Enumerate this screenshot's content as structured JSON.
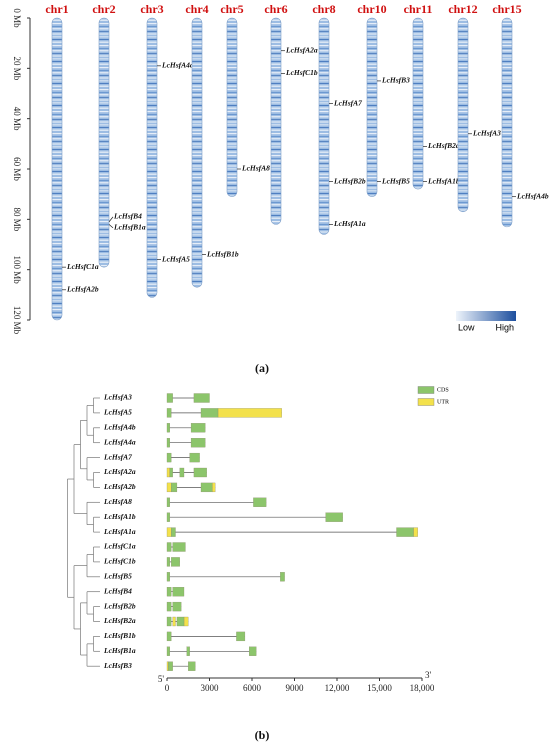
{
  "chart_data": [
    {
      "type": "chromosome-map",
      "panel_label": "(a)",
      "ylim": [
        0,
        120
      ],
      "yticks": [
        {
          "value": 0,
          "label": "0 Mb"
        },
        {
          "value": 20,
          "label": "20 Mb"
        },
        {
          "value": 40,
          "label": "40 Mb"
        },
        {
          "value": 60,
          "label": "60 Mb"
        },
        {
          "value": 80,
          "label": "80 Mb"
        },
        {
          "value": 100,
          "label": "100 Mb"
        },
        {
          "value": 120,
          "label": "120 Mb"
        }
      ],
      "legend_labels": [
        "Low",
        "High"
      ],
      "legend_colors": [
        "#eef4fb",
        "#1d4f9e"
      ],
      "chromosomes": [
        {
          "name": "chr1",
          "length": 120,
          "genes": [
            {
              "name": "LcHsfC1a",
              "position": 99
            },
            {
              "name": "LcHsfA2b",
              "position": 108
            }
          ]
        },
        {
          "name": "chr2",
          "length": 99,
          "genes": [
            {
              "name": "LcHsfB4",
              "position": 81
            },
            {
              "name": "LcHsfB1a",
              "position": 82
            }
          ]
        },
        {
          "name": "chr3",
          "length": 111,
          "genes": [
            {
              "name": "LcHsfA4a",
              "position": 19
            },
            {
              "name": "LcHsfA5",
              "position": 96
            }
          ]
        },
        {
          "name": "chr4",
          "length": 107,
          "genes": [
            {
              "name": "LcHsfB1b",
              "position": 94
            }
          ]
        },
        {
          "name": "chr5",
          "length": 71,
          "genes": [
            {
              "name": "LcHsfA8",
              "position": 60
            }
          ]
        },
        {
          "name": "chr6",
          "length": 82,
          "genes": [
            {
              "name": "LcHsfA2a",
              "position": 13
            },
            {
              "name": "LcHsfC1b",
              "position": 22
            }
          ]
        },
        {
          "name": "chr8",
          "length": 86,
          "genes": [
            {
              "name": "LcHsfA7",
              "position": 34
            },
            {
              "name": "LcHsfB2b",
              "position": 65
            },
            {
              "name": "LcHsfA1a",
              "position": 82
            }
          ]
        },
        {
          "name": "chr10",
          "length": 71,
          "genes": [
            {
              "name": "LcHsfB3",
              "position": 25
            },
            {
              "name": "LcHsfB5",
              "position": 65
            }
          ]
        },
        {
          "name": "chr11",
          "length": 68,
          "genes": [
            {
              "name": "LcHsfB2a",
              "position": 51
            },
            {
              "name": "LcHsfA1b",
              "position": 65
            }
          ]
        },
        {
          "name": "chr12",
          "length": 77,
          "genes": [
            {
              "name": "LcHsfA3",
              "position": 46
            }
          ]
        },
        {
          "name": "chr15",
          "length": 83,
          "genes": [
            {
              "name": "LcHsfA4b",
              "position": 71
            }
          ]
        }
      ]
    },
    {
      "type": "gene-structure",
      "panel_label": "(b)",
      "xlim": [
        0,
        18000
      ],
      "xticks": [
        0,
        3000,
        6000,
        9000,
        {
          "value": 12000,
          "label": "12,000"
        },
        {
          "value": 15000,
          "label": "15,000"
        },
        {
          "value": 18000,
          "label": "18,000"
        }
      ],
      "end_labels": [
        "5'",
        "3'"
      ],
      "features": [
        {
          "name": "CDS",
          "color": "#8cc56b"
        },
        {
          "name": "UTR",
          "color": "#f3e14b"
        }
      ],
      "genes": [
        {
          "name": "LcHsfA3",
          "span": [
            0,
            3000
          ],
          "cds": [
            [
              0,
              400
            ],
            [
              1900,
              3000
            ]
          ],
          "utr": []
        },
        {
          "name": "LcHsfA5",
          "span": [
            0,
            8100
          ],
          "cds": [
            [
              0,
              300
            ],
            [
              2400,
              3600
            ]
          ],
          "utr": [
            [
              3600,
              8100
            ]
          ]
        },
        {
          "name": "LcHsfA4b",
          "span": [
            0,
            2700
          ],
          "cds": [
            [
              0,
              200
            ],
            [
              1700,
              2700
            ]
          ],
          "utr": []
        },
        {
          "name": "LcHsfA4a",
          "span": [
            0,
            2700
          ],
          "cds": [
            [
              0,
              200
            ],
            [
              1700,
              2700
            ]
          ],
          "utr": []
        },
        {
          "name": "LcHsfA7",
          "span": [
            0,
            2300
          ],
          "cds": [
            [
              0,
              300
            ],
            [
              1600,
              2300
            ]
          ],
          "utr": []
        },
        {
          "name": "LcHsfA2a",
          "span": [
            0,
            2800
          ],
          "cds": [
            [
              200,
              400
            ],
            [
              900,
              1200
            ],
            [
              1900,
              2800
            ]
          ],
          "utr": [
            [
              0,
              200
            ]
          ]
        },
        {
          "name": "LcHsfA2b",
          "span": [
            0,
            3400
          ],
          "cds": [
            [
              300,
              700
            ],
            [
              2400,
              3200
            ]
          ],
          "utr": [
            [
              0,
              300
            ],
            [
              3200,
              3400
            ]
          ]
        },
        {
          "name": "LcHsfA8",
          "span": [
            0,
            7000
          ],
          "cds": [
            [
              0,
              200
            ],
            [
              6100,
              7000
            ]
          ],
          "utr": []
        },
        {
          "name": "LcHsfA1b",
          "span": [
            0,
            12400
          ],
          "cds": [
            [
              0,
              200
            ],
            [
              11200,
              12400
            ]
          ],
          "utr": []
        },
        {
          "name": "LcHsfA1a",
          "span": [
            0,
            17700
          ],
          "cds": [
            [
              300,
              600
            ],
            [
              16200,
              17400
            ]
          ],
          "utr": [
            [
              0,
              300
            ],
            [
              17400,
              17700
            ]
          ]
        },
        {
          "name": "LcHsfC1a",
          "span": [
            0,
            1300
          ],
          "cds": [
            [
              0,
              300
            ],
            [
              400,
              1300
            ]
          ],
          "utr": []
        },
        {
          "name": "LcHsfC1b",
          "span": [
            0,
            900
          ],
          "cds": [
            [
              0,
              200
            ],
            [
              300,
              900
            ]
          ],
          "utr": []
        },
        {
          "name": "LcHsfB5",
          "span": [
            0,
            8300
          ],
          "cds": [
            [
              0,
              200
            ],
            [
              8000,
              8300
            ]
          ],
          "utr": []
        },
        {
          "name": "LcHsfB4",
          "span": [
            0,
            1200
          ],
          "cds": [
            [
              0,
              300
            ],
            [
              400,
              1200
            ]
          ],
          "utr": []
        },
        {
          "name": "LcHsfB2b",
          "span": [
            0,
            1000
          ],
          "cds": [
            [
              0,
              300
            ],
            [
              400,
              1000
            ]
          ],
          "utr": []
        },
        {
          "name": "LcHsfB2a",
          "span": [
            0,
            1500
          ],
          "cds": [
            [
              0,
              300
            ],
            [
              700,
              1200
            ]
          ],
          "utr": [
            [
              400,
              600
            ],
            [
              1200,
              1500
            ]
          ]
        },
        {
          "name": "LcHsfB1b",
          "span": [
            0,
            5500
          ],
          "cds": [
            [
              0,
              300
            ],
            [
              4900,
              5500
            ]
          ],
          "utr": []
        },
        {
          "name": "LcHsfB1a",
          "span": [
            0,
            6300
          ],
          "cds": [
            [
              0,
              200
            ],
            [
              1400,
              1600
            ],
            [
              5800,
              6300
            ]
          ],
          "utr": []
        },
        {
          "name": "LcHsfB3",
          "span": [
            0,
            2000
          ],
          "cds": [
            [
              100,
              400
            ],
            [
              1500,
              2000
            ]
          ],
          "utr": [
            [
              0,
              100
            ]
          ]
        }
      ]
    }
  ]
}
